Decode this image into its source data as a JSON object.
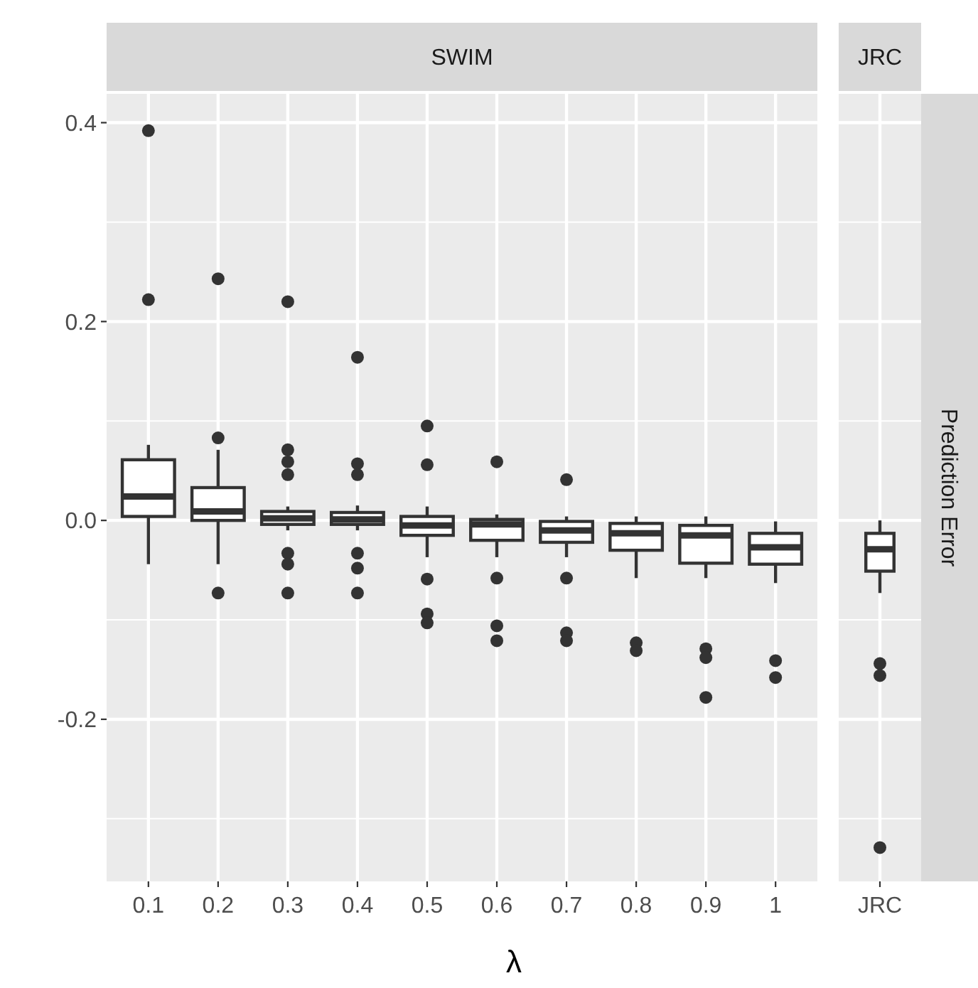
{
  "chart_data": [
    {
      "type": "box",
      "title": "SWIM",
      "xlabel": "λ",
      "categories": [
        "0.1",
        "0.2",
        "0.3",
        "0.4",
        "0.5",
        "0.6",
        "0.7",
        "0.8",
        "0.9",
        "1"
      ],
      "ylim": [
        -0.363,
        0.429
      ],
      "yticks": [
        {
          "value": -0.2,
          "label": "-0.2"
        },
        {
          "value": 0,
          "label": "0.0"
        },
        {
          "value": 0.2,
          "label": "0.2"
        },
        {
          "value": 0.4,
          "label": "0.4"
        }
      ],
      "grid": true,
      "boxes": [
        {
          "low": -0.044,
          "q1": 0.004,
          "median": 0.024,
          "q3": 0.061,
          "high": 0.076,
          "outliers": [
            0.392,
            0.222
          ]
        },
        {
          "low": -0.044,
          "q1": 0.0,
          "median": 0.009,
          "q3": 0.033,
          "high": 0.071,
          "outliers": [
            0.243,
            0.083,
            -0.073
          ]
        },
        {
          "low": -0.01,
          "q1": -0.004,
          "median": 0.002,
          "q3": 0.009,
          "high": 0.014,
          "outliers": [
            0.22,
            0.071,
            0.059,
            0.046,
            -0.033,
            -0.044,
            -0.073
          ]
        },
        {
          "low": -0.01,
          "q1": -0.004,
          "median": 0.001,
          "q3": 0.008,
          "high": 0.015,
          "outliers": [
            0.164,
            0.057,
            0.046,
            -0.033,
            -0.048,
            -0.073
          ]
        },
        {
          "low": -0.037,
          "q1": -0.015,
          "median": -0.005,
          "q3": 0.004,
          "high": 0.014,
          "outliers": [
            0.095,
            0.056,
            -0.059,
            -0.094,
            -0.103
          ]
        },
        {
          "low": -0.037,
          "q1": -0.02,
          "median": -0.004,
          "q3": 0.001,
          "high": 0.006,
          "outliers": [
            0.059,
            -0.058,
            -0.106,
            -0.121
          ]
        },
        {
          "low": -0.037,
          "q1": -0.022,
          "median": -0.01,
          "q3": -0.001,
          "high": 0.004,
          "outliers": [
            0.041,
            -0.058,
            -0.113,
            -0.121
          ]
        },
        {
          "low": -0.058,
          "q1": -0.03,
          "median": -0.013,
          "q3": -0.003,
          "high": 0.004,
          "outliers": [
            -0.123,
            -0.131
          ]
        },
        {
          "low": -0.058,
          "q1": -0.043,
          "median": -0.015,
          "q3": -0.005,
          "high": 0.004,
          "outliers": [
            -0.129,
            -0.138,
            -0.178
          ]
        },
        {
          "low": -0.063,
          "q1": -0.044,
          "median": -0.027,
          "q3": -0.013,
          "high": -0.001,
          "outliers": [
            -0.141,
            -0.158
          ]
        }
      ]
    },
    {
      "type": "box",
      "title": "JRC",
      "y2label": "Prediction Error",
      "categories": [
        "JRC"
      ],
      "ylim": [
        -0.363,
        0.429
      ],
      "yticks": [
        -0.2,
        0,
        0.2,
        0.4
      ],
      "grid": true,
      "tick_labels": "x",
      "boxes": [
        {
          "low": -0.073,
          "q1": -0.051,
          "median": -0.029,
          "q3": -0.013,
          "high": 0.0,
          "outliers": [
            -0.144,
            -0.156,
            -0.329
          ]
        }
      ]
    }
  ]
}
